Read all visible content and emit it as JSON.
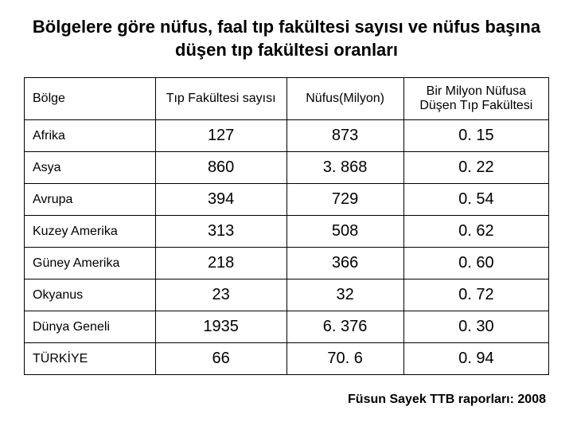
{
  "title": "Bölgelere göre nüfus, faal tıp fakültesi sayısı ve nüfus başına düşen tıp fakültesi oranları",
  "table": {
    "columns": [
      "Bölge",
      "Tıp Fakültesi sayısı",
      "Nüfus(Milyon)",
      "Bir Milyon Nüfusa Düşen Tıp Fakültesi"
    ],
    "rows": [
      {
        "region": "Afrika",
        "fac": "127",
        "pop": "873",
        "ratio": "0. 15"
      },
      {
        "region": "Asya",
        "fac": "860",
        "pop": "3. 868",
        "ratio": "0. 22"
      },
      {
        "region": "Avrupa",
        "fac": "394",
        "pop": "729",
        "ratio": "0. 54"
      },
      {
        "region": "Kuzey Amerika",
        "fac": "313",
        "pop": "508",
        "ratio": "0. 62"
      },
      {
        "region": "Güney Amerika",
        "fac": "218",
        "pop": "366",
        "ratio": "0. 60"
      },
      {
        "region": "Okyanus",
        "fac": "23",
        "pop": "32",
        "ratio": "0. 72"
      },
      {
        "region": "Dünya Geneli",
        "fac": "1935",
        "pop": "6. 376",
        "ratio": "0. 30"
      },
      {
        "region": "TÜRKİYE",
        "fac": "66",
        "pop": "70. 6",
        "ratio": "0. 94"
      }
    ]
  },
  "source": "Füsun Sayek TTB raporları: 2008",
  "colors": {
    "background": "#ffffff",
    "border": "#000000",
    "text": "#000000"
  },
  "typography": {
    "title_fontsize": 22,
    "header_fontsize": 16,
    "region_fontsize": 16,
    "num_fontsize": 20,
    "source_fontsize": 16
  }
}
